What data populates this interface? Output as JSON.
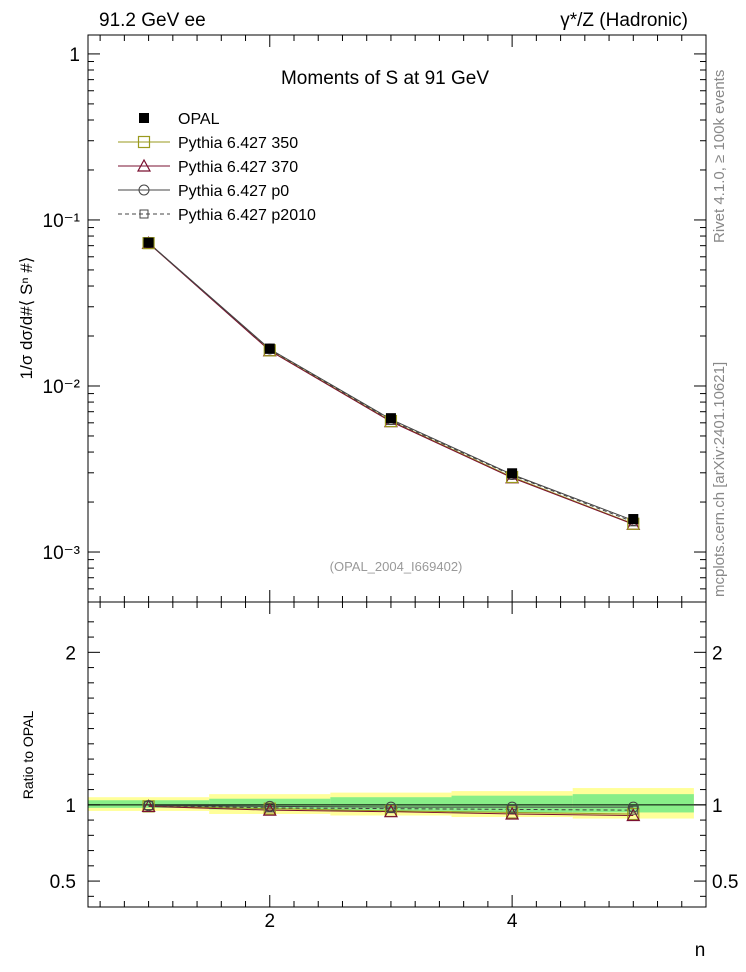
{
  "header": {
    "left": "91.2 GeV ee",
    "right": "γ*/Z (Hadronic)"
  },
  "side_labels": {
    "rivet": "Rivet 4.1.0, ≥ 100k events",
    "mcplots": "mcplots.cern.ch [arXiv:2401.10621]"
  },
  "chart_data": [
    {
      "type": "line",
      "panel": "main",
      "title": "Moments of S at 91 GeV",
      "ylabel": "1/σ  dσ/d#⟨ Sⁿ #⟩",
      "xlabel": "",
      "yscale": "log",
      "ylim": [
        0.0005,
        1.3
      ],
      "xlim": [
        0.5,
        5.6
      ],
      "watermark": "(OPAL_2004_I669402)",
      "y_tick_labels": [
        "1",
        "10⁻¹",
        "10⁻²",
        "10⁻³"
      ],
      "y_tick_values": [
        1,
        0.1,
        0.01,
        0.001
      ],
      "legend_position": "top-left",
      "x": [
        1,
        2,
        3,
        4,
        5
      ],
      "series": [
        {
          "name": "OPAL",
          "kind": "data",
          "color": "#000000",
          "marker": "filled-square",
          "values": [
            0.073,
            0.0168,
            0.0064,
            0.00298,
            0.00158
          ]
        },
        {
          "name": "Pythia 6.427 350",
          "kind": "mc",
          "color": "#9a9a1e",
          "marker": "open-square",
          "line": "solid",
          "values": [
            0.0725,
            0.0164,
            0.00615,
            0.00283,
            0.00148
          ]
        },
        {
          "name": "Pythia 6.427 370",
          "kind": "mc",
          "color": "#7a1030",
          "marker": "open-triangle",
          "line": "solid",
          "values": [
            0.0724,
            0.0163,
            0.0061,
            0.0028,
            0.00147
          ]
        },
        {
          "name": "Pythia 6.427 p0",
          "kind": "mc",
          "color": "#444444",
          "marker": "open-circle",
          "line": "solid",
          "values": [
            0.0728,
            0.0167,
            0.0063,
            0.00293,
            0.00155
          ]
        },
        {
          "name": "Pythia 6.427 p2010",
          "kind": "mc",
          "color": "#444444",
          "marker": "open-square-small",
          "line": "dashed",
          "values": [
            0.0727,
            0.0166,
            0.0062,
            0.0029,
            0.00152
          ]
        }
      ]
    },
    {
      "type": "line",
      "panel": "ratio",
      "title": "",
      "ylabel": "Ratio to OPAL",
      "xlabel": "n",
      "yscale": "linear",
      "ylim": [
        0.33,
        2.33
      ],
      "xlim": [
        0.5,
        5.6
      ],
      "y_tick_labels": [
        "2",
        "1",
        "0.5"
      ],
      "y_tick_values": [
        2,
        1,
        0.5
      ],
      "x_tick_labels": [
        "2",
        "4"
      ],
      "x_tick_values": [
        2,
        4
      ],
      "bin_edges": [
        0.5,
        1.5,
        2.5,
        3.5,
        4.5,
        5.5
      ],
      "bands": {
        "stat_syst_yellow": [
          [
            0.96,
            1.05
          ],
          [
            0.94,
            1.07
          ],
          [
            0.93,
            1.08
          ],
          [
            0.92,
            1.09
          ],
          [
            0.91,
            1.11
          ]
        ],
        "stat_green": [
          [
            0.98,
            1.03
          ],
          [
            0.97,
            1.04
          ],
          [
            0.96,
            1.05
          ],
          [
            0.95,
            1.06
          ],
          [
            0.95,
            1.07
          ]
        ]
      },
      "x": [
        1,
        2,
        3,
        4,
        5
      ],
      "series": [
        {
          "name": "Pythia 6.427 350",
          "color": "#9a9a1e",
          "marker": "open-square",
          "line": "solid",
          "values": [
            0.99,
            0.975,
            0.96,
            0.95,
            0.94
          ]
        },
        {
          "name": "Pythia 6.427 370",
          "color": "#7a1030",
          "marker": "open-triangle",
          "line": "solid",
          "values": [
            0.99,
            0.965,
            0.955,
            0.94,
            0.93
          ]
        },
        {
          "name": "Pythia 6.427 p0",
          "color": "#444444",
          "marker": "open-circle",
          "line": "solid",
          "values": [
            0.995,
            0.99,
            0.985,
            0.985,
            0.985
          ]
        },
        {
          "name": "Pythia 6.427 p2010",
          "color": "#444444",
          "marker": "open-square-small",
          "line": "dashed",
          "values": [
            0.995,
            0.98,
            0.975,
            0.97,
            0.965
          ]
        }
      ]
    }
  ],
  "colors": {
    "yellow_band": "#ffff99",
    "green_band": "#88ee88",
    "watermark": "#999999",
    "side_text": "#888888"
  }
}
